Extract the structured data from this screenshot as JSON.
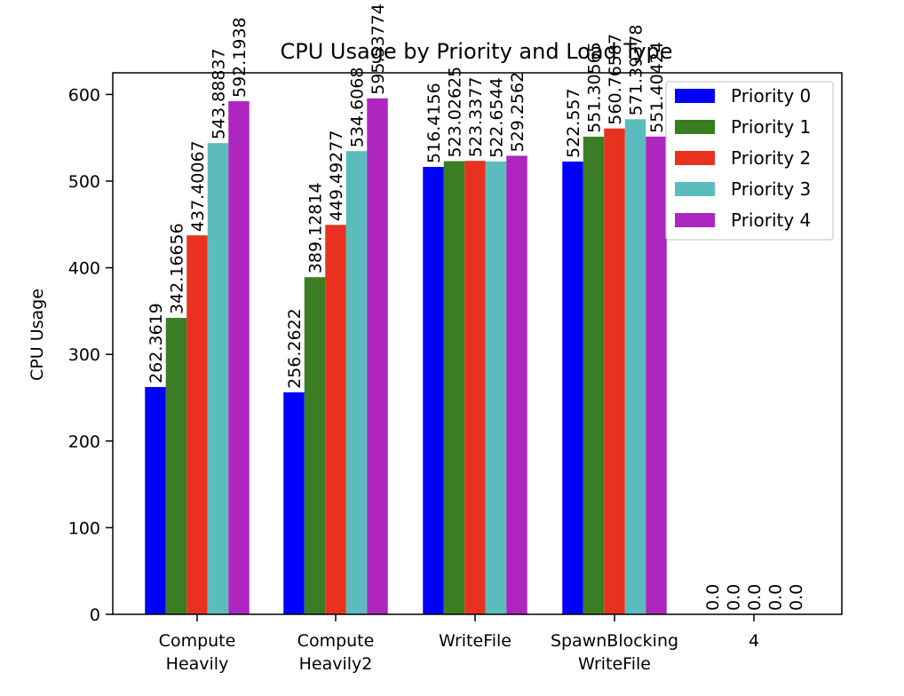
{
  "chart_data": {
    "type": "bar",
    "title": "CPU Usage by Priority and Load Type",
    "xlabel": "",
    "ylabel": "CPU Usage",
    "ylim": [
      0,
      625
    ],
    "yticks": [
      0,
      100,
      200,
      300,
      400,
      500,
      600
    ],
    "grid": false,
    "legend_position": "top-right",
    "categories": [
      [
        "Compute",
        "Heavily"
      ],
      [
        "Compute",
        "Heavily2"
      ],
      [
        "WriteFile"
      ],
      [
        "SpawnBlocking",
        "WriteFile"
      ],
      [
        "4"
      ]
    ],
    "series": [
      {
        "name": "Priority 0",
        "color": "#0000ff",
        "values": [
          262.3619,
          256.2622,
          516.4156,
          522.557,
          0.0
        ]
      },
      {
        "name": "Priority 1",
        "color": "#3a7d23",
        "values": [
          342.16656,
          389.12814,
          523.02625,
          551.30565,
          0.0
        ]
      },
      {
        "name": "Priority 2",
        "color": "#e8321f",
        "values": [
          437.40067,
          449.49277,
          523.3377,
          560.76587,
          0.0
        ]
      },
      {
        "name": "Priority 3",
        "color": "#5bbcbd",
        "values": [
          543.88837,
          534.6068,
          522.6544,
          571.39378,
          0.0
        ]
      },
      {
        "name": "Priority 4",
        "color": "#ad26bf",
        "values": [
          592.1938,
          595.53774,
          529.2562,
          551.40424,
          0.0
        ]
      }
    ]
  }
}
